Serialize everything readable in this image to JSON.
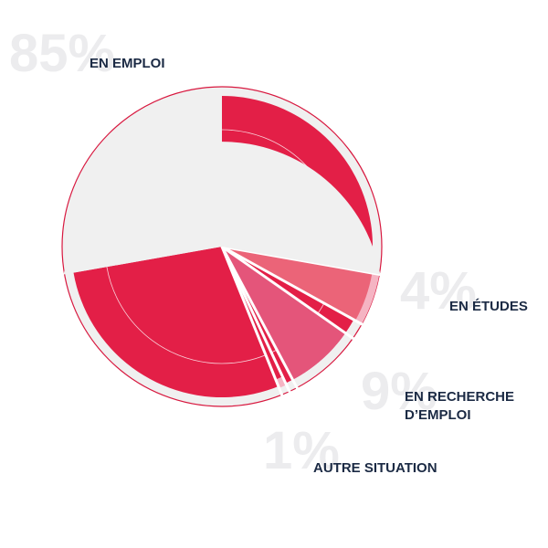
{
  "chart_data": {
    "type": "pie",
    "slices": [
      {
        "label_lines": [
          "EN EMPLOI"
        ],
        "percent_text": "85%",
        "value": 85,
        "color": "#e31f47",
        "outer_color": "#f0f0f0"
      },
      {
        "label_lines": [
          "EN ÉTUDES"
        ],
        "percent_text": "4%",
        "value": 4,
        "color": "#eb6478",
        "outer_color": "#f5b4c3"
      },
      {
        "label_lines": [
          "EN RECHERCHE",
          "D’EMPLOI"
        ],
        "percent_text": "9%",
        "value": 9,
        "color": "#e4557a",
        "outer_color": "#e4557a"
      },
      {
        "label_lines": [
          "AUTRE SITUATION"
        ],
        "percent_text": "1%",
        "value": 1,
        "color": "#e31f47",
        "outer_color": "#f5b4c3"
      }
    ]
  }
}
